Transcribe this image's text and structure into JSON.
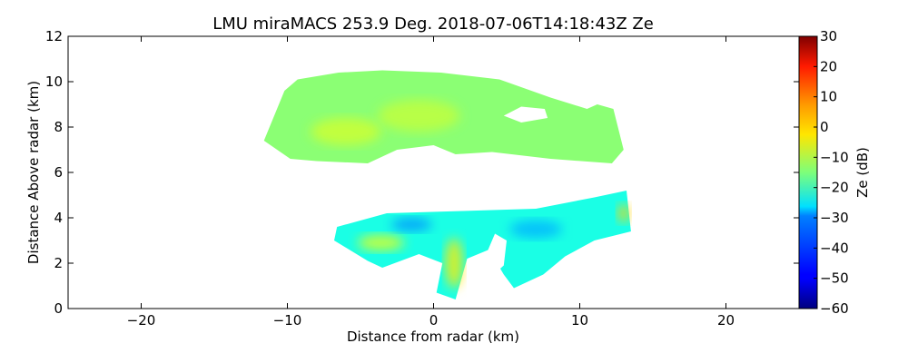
{
  "chart_data": {
    "type": "heatmap",
    "title": "LMU miraMACS 253.9 Deg. 2018-07-06T14:18:43Z  Ze",
    "xlabel": "Distance from radar (km)",
    "ylabel": "Distance Above radar  (km)",
    "xlim": [
      -25,
      25
    ],
    "ylim": [
      0,
      12
    ],
    "xticks": [
      -20,
      -10,
      0,
      10,
      20
    ],
    "xtick_labels": [
      "−20",
      "−10",
      "0",
      "10",
      "20"
    ],
    "yticks": [
      0,
      2,
      4,
      6,
      8,
      10,
      12
    ],
    "ytick_labels": [
      "0",
      "2",
      "4",
      "6",
      "8",
      "10",
      "12"
    ],
    "colorbar": {
      "label": "Ze (dB)",
      "range": [
        -60,
        30
      ],
      "ticks": [
        -60,
        -50,
        -40,
        -30,
        -20,
        -10,
        0,
        10,
        20,
        30
      ],
      "tick_labels": [
        "−60",
        "−50",
        "−40",
        "−30",
        "−20",
        "−10",
        "0",
        "10",
        "20",
        "30"
      ],
      "colormap": "jet"
    },
    "regions": [
      {
        "name": "upper-cloud-layer",
        "ze_typical": -14,
        "outline": [
          [
            -11.6,
            7.4
          ],
          [
            -10.2,
            9.6
          ],
          [
            -9.3,
            10.1
          ],
          [
            -6.5,
            10.4
          ],
          [
            -3.5,
            10.5
          ],
          [
            0.5,
            10.4
          ],
          [
            4.5,
            10.1
          ],
          [
            8.0,
            9.3
          ],
          [
            10.5,
            8.8
          ],
          [
            11.2,
            9.0
          ],
          [
            12.3,
            8.8
          ],
          [
            13.0,
            7.0
          ],
          [
            12.2,
            6.4
          ],
          [
            8.0,
            6.6
          ],
          [
            4.0,
            6.9
          ],
          [
            1.5,
            6.8
          ],
          [
            0.0,
            7.2
          ],
          [
            -2.5,
            7.0
          ],
          [
            -4.5,
            6.4
          ],
          [
            -8.0,
            6.5
          ],
          [
            -9.8,
            6.6
          ]
        ]
      },
      {
        "name": "lower-cloud-band",
        "ze_typical": -24,
        "outline": [
          [
            -6.6,
            3.6
          ],
          [
            -3.2,
            4.2
          ],
          [
            2.0,
            4.3
          ],
          [
            7.0,
            4.4
          ],
          [
            11.0,
            4.9
          ],
          [
            13.2,
            5.2
          ],
          [
            13.5,
            3.4
          ],
          [
            11.0,
            3.0
          ],
          [
            9.0,
            2.3
          ],
          [
            7.5,
            1.5
          ],
          [
            5.5,
            0.9
          ],
          [
            4.8,
            1.5
          ],
          [
            3.8,
            2.6
          ],
          [
            2.3,
            2.2
          ],
          [
            1.5,
            0.4
          ],
          [
            0.2,
            0.7
          ],
          [
            0.6,
            2.0
          ],
          [
            -1.0,
            2.4
          ],
          [
            -3.5,
            1.8
          ],
          [
            -4.5,
            2.1
          ],
          [
            -6.8,
            3.0
          ]
        ]
      },
      {
        "name": "upper-gap",
        "ze_typical": null,
        "outline": [
          [
            4.8,
            8.5
          ],
          [
            6.0,
            8.9
          ],
          [
            7.6,
            8.8
          ],
          [
            7.8,
            8.4
          ],
          [
            6.0,
            8.2
          ]
        ]
      },
      {
        "name": "lower-gap",
        "ze_typical": null,
        "outline": [
          [
            3.6,
            1.2
          ],
          [
            4.8,
            1.9
          ],
          [
            5.0,
            3.0
          ],
          [
            4.2,
            3.3
          ],
          [
            3.6,
            2.4
          ]
        ]
      }
    ],
    "highlights": [
      {
        "name": "upper-core-west",
        "ze": -8,
        "center": [
          -6.0,
          7.8
        ],
        "radius": [
          2.4,
          0.6
        ]
      },
      {
        "name": "upper-core-mid",
        "ze": -9,
        "center": [
          -1.0,
          8.5
        ],
        "radius": [
          2.8,
          0.7
        ]
      },
      {
        "name": "fall-streak-core",
        "ze": -2,
        "center": [
          1.4,
          2.0
        ],
        "radius": [
          0.6,
          1.1
        ]
      },
      {
        "name": "lower-band-west",
        "ze": -6,
        "center": [
          -3.6,
          2.9
        ],
        "radius": [
          1.6,
          0.35
        ]
      },
      {
        "name": "lower-band-east-edge",
        "ze": 0,
        "center": [
          13.0,
          4.2
        ],
        "radius": [
          0.4,
          0.4
        ]
      },
      {
        "name": "weak-echo-lower",
        "ze": -36,
        "center": [
          -1.5,
          3.7
        ],
        "radius": [
          1.4,
          0.3
        ]
      },
      {
        "name": "weak-echo-east",
        "ze": -33,
        "center": [
          7.0,
          3.5
        ],
        "radius": [
          1.8,
          0.4
        ]
      }
    ]
  }
}
